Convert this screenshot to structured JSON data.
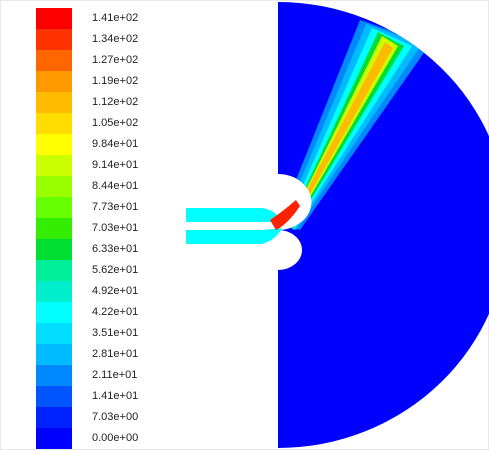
{
  "legend": {
    "labels": [
      "1.41e+02",
      "1.34e+02",
      "1.27e+02",
      "1.19e+02",
      "1.12e+02",
      "1.05e+02",
      "9.84e+01",
      "9.14e+01",
      "8.44e+01",
      "7.73e+01",
      "7.03e+01",
      "6.33e+01",
      "5.62e+01",
      "4.92e+01",
      "4.22e+01",
      "3.51e+01",
      "2.81e+01",
      "2.11e+01",
      "1.41e+01",
      "7.03e+00",
      "0.00e+00"
    ],
    "colors": [
      "#ff0000",
      "#ff3300",
      "#ff6600",
      "#ff9900",
      "#ffbb00",
      "#ffdd00",
      "#ffff00",
      "#ccff00",
      "#99ff00",
      "#66ff00",
      "#33ee00",
      "#00dd33",
      "#00ee99",
      "#00eecc",
      "#00ffff",
      "#00ddff",
      "#00bbff",
      "#0088ff",
      "#0055ff",
      "#0022ff",
      "#0000ff"
    ]
  },
  "field": {
    "background_color": "#0000ff",
    "jet_core_color": "#ff2200",
    "inlet_color": "#00ffff"
  }
}
